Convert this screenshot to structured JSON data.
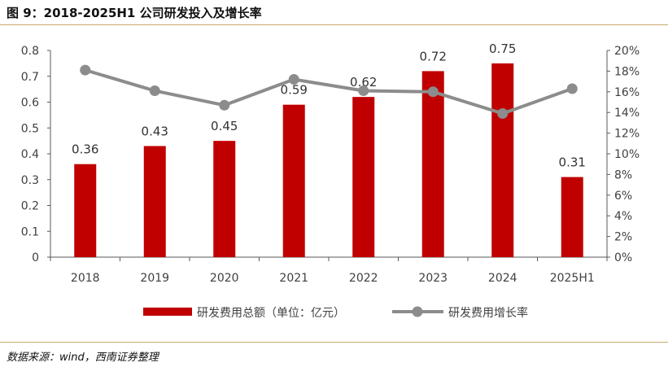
{
  "header": {
    "title": "图 9：2018-2025H1 公司研发投入及增长率"
  },
  "footer": {
    "source": "数据来源：wind，西南证券整理"
  },
  "colors": {
    "bar": "#c00000",
    "line": "#8c8c8c",
    "rule": "#c9a96a"
  },
  "chart_data": {
    "type": "bar+line",
    "categories": [
      "2018",
      "2019",
      "2020",
      "2021",
      "2022",
      "2023",
      "2024",
      "2025H1"
    ],
    "series": [
      {
        "name": "研发费用总额（单位：亿元）",
        "type": "bar",
        "axis": "left",
        "values": [
          0.36,
          0.43,
          0.45,
          0.59,
          0.62,
          0.72,
          0.75,
          0.31
        ],
        "labels": [
          "0.36",
          "0.43",
          "0.45",
          "0.59",
          "0.62",
          "0.72",
          "0.75",
          "0.31"
        ]
      },
      {
        "name": "研发费用增长率",
        "type": "line",
        "axis": "right",
        "values": [
          0.181,
          0.161,
          0.147,
          0.172,
          0.161,
          0.16,
          0.139,
          0.163
        ]
      }
    ],
    "left_axis": {
      "min": 0,
      "max": 0.8,
      "ticks": [
        "0",
        "0.1",
        "0.2",
        "0.3",
        "0.4",
        "0.5",
        "0.6",
        "0.7",
        "0.8"
      ]
    },
    "right_axis": {
      "min": 0,
      "max": 0.2,
      "ticks": [
        "0%",
        "2%",
        "4%",
        "6%",
        "8%",
        "10%",
        "12%",
        "14%",
        "16%",
        "18%",
        "20%"
      ]
    },
    "legend_position": "bottom",
    "grid": false
  }
}
